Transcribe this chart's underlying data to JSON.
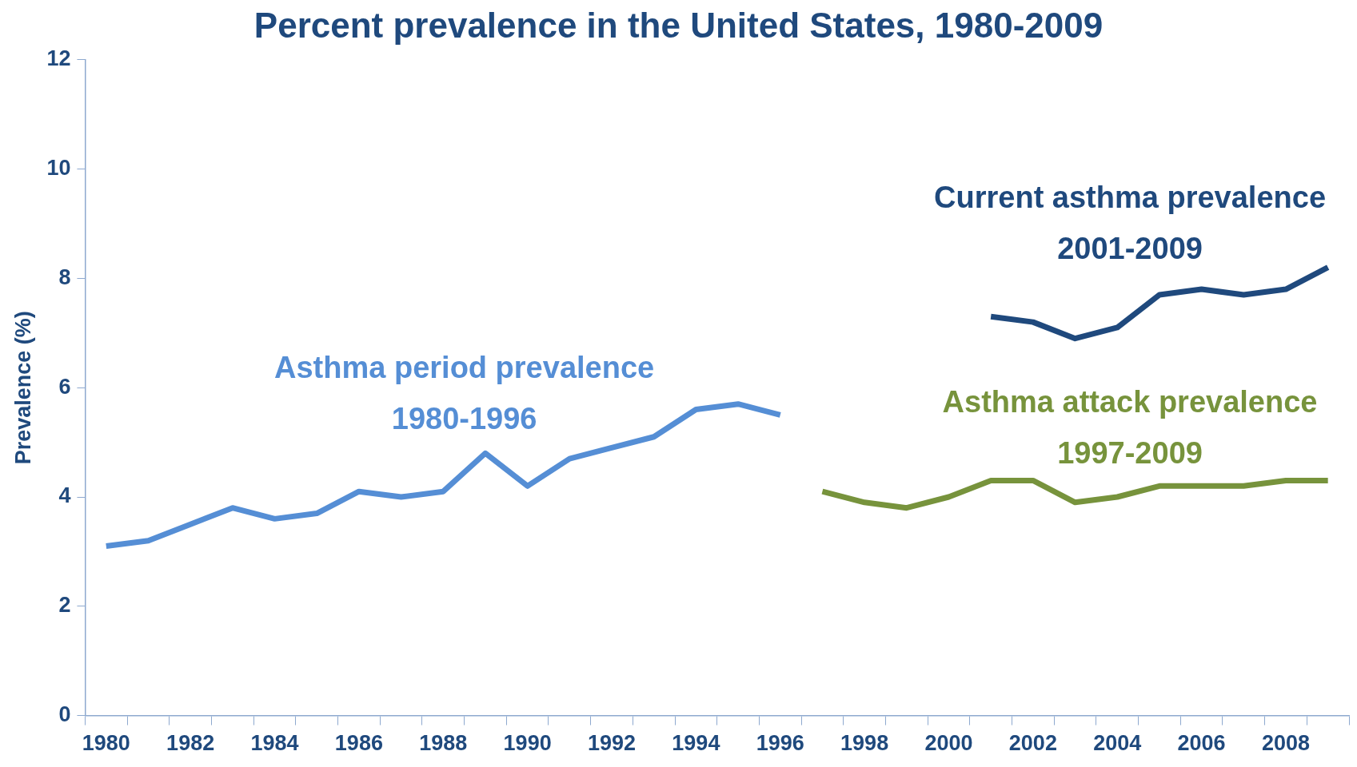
{
  "chart_data": {
    "type": "line",
    "title": "Percent prevalence in the United States, 1980-2009",
    "ylabel": "Prevalence (%)",
    "categories": [
      "1980",
      null,
      "1982",
      null,
      "1984",
      null,
      "1986",
      null,
      "1988",
      null,
      "1990",
      null,
      "1992",
      null,
      "1994",
      null,
      "1996",
      null,
      "1998",
      null,
      "2000",
      null,
      "2002",
      null,
      "2004",
      null,
      "2006",
      null,
      "2008",
      null
    ],
    "series": [
      {
        "name": "Asthma period prevalence 1980-1996",
        "color": "#558ed5",
        "values": [
          3.1,
          3.2,
          3.5,
          3.8,
          3.6,
          3.7,
          4.1,
          4.0,
          4.1,
          4.8,
          4.2,
          4.7,
          4.9,
          5.1,
          5.6,
          5.7,
          5.5,
          null,
          null,
          null,
          null,
          null,
          null,
          null,
          null,
          null,
          null,
          null,
          null,
          null
        ]
      },
      {
        "name": "Current asthma prevalence 2001-2009",
        "color": "#1f497d",
        "values": [
          null,
          null,
          null,
          null,
          null,
          null,
          null,
          null,
          null,
          null,
          null,
          null,
          null,
          null,
          null,
          null,
          null,
          null,
          null,
          null,
          null,
          7.3,
          7.2,
          6.9,
          7.1,
          7.7,
          7.8,
          7.7,
          7.8,
          8.2
        ]
      },
      {
        "name": "Asthma attack prevalence 1997-2009",
        "color": "#77933c",
        "values": [
          null,
          null,
          null,
          null,
          null,
          null,
          null,
          null,
          null,
          null,
          null,
          null,
          null,
          null,
          null,
          null,
          null,
          4.1,
          3.9,
          3.8,
          4.0,
          4.3,
          4.3,
          3.9,
          4.0,
          4.2,
          4.2,
          4.2,
          4.3,
          4.3
        ]
      }
    ],
    "ylim": [
      0,
      12
    ],
    "yticks": [
      0,
      2,
      4,
      6,
      8,
      10,
      12
    ],
    "grid": false,
    "legend": false,
    "marker": "none",
    "line_style": "solid"
  }
}
